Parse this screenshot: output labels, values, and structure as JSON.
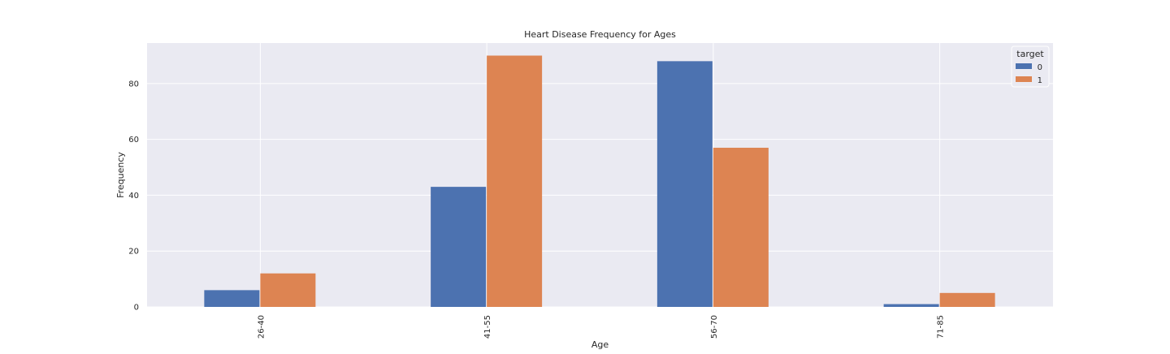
{
  "chart_data": {
    "type": "bar",
    "title": "Heart Disease Frequency for Ages",
    "xlabel": "Age",
    "ylabel": "Frequency",
    "categories": [
      "26-40",
      "41-55",
      "56-70",
      "71-85"
    ],
    "series": [
      {
        "name": "0",
        "values": [
          6,
          43,
          88,
          1
        ],
        "color": "#4c72b0"
      },
      {
        "name": "1",
        "values": [
          12,
          90,
          57,
          5
        ],
        "color": "#dd8452"
      }
    ],
    "ylim": [
      0,
      94.5
    ],
    "yticks": [
      0,
      20,
      40,
      60,
      80
    ],
    "grid": true,
    "legend": {
      "title": "target",
      "placement": "top-right"
    },
    "colors": {
      "plot_background": "#eaeaf2",
      "grid": "#ffffff"
    }
  }
}
